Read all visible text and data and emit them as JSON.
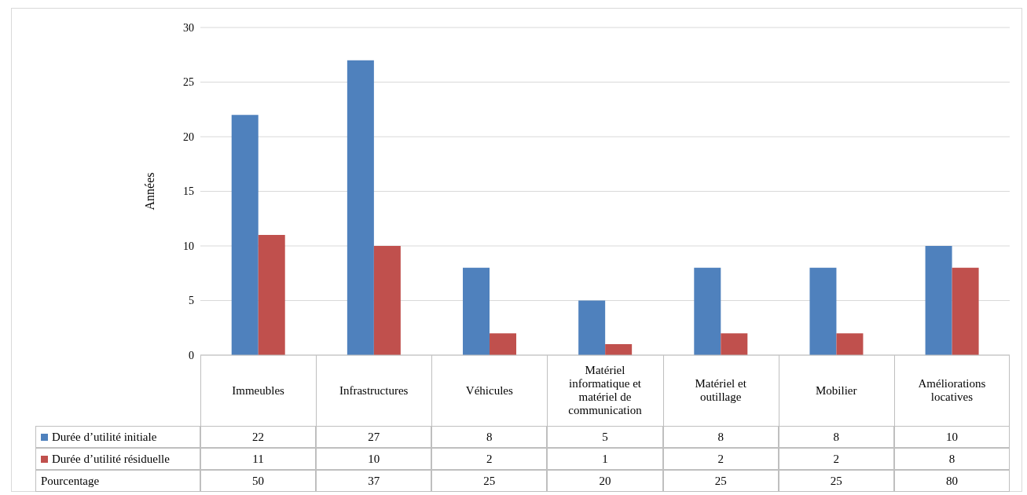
{
  "chart_data": {
    "type": "bar",
    "ylabel": "Années",
    "categories": [
      "Immeubles",
      "Infrastructures",
      "Véhicules",
      "Matériel informatique et matériel de communication",
      "Matériel et outillage",
      "Mobilier",
      "Améliorations locatives"
    ],
    "series": [
      {
        "name": "Durée d’utilité initiale",
        "color": "#4f81bd",
        "values": [
          22,
          27,
          8,
          5,
          8,
          8,
          10
        ]
      },
      {
        "name": "Durée d’utilité résiduelle",
        "color": "#c0504d",
        "values": [
          11,
          10,
          2,
          1,
          2,
          2,
          8
        ]
      }
    ],
    "ylim": [
      0,
      30
    ],
    "yticks": [
      0,
      5,
      10,
      15,
      20,
      25,
      30
    ],
    "grid": "y",
    "legend": "bottom left",
    "data_labels": true,
    "annotations": [
      "Pourcentage",
      "50",
      "37",
      "25",
      "20",
      "25",
      "25",
      "80"
    ]
  }
}
